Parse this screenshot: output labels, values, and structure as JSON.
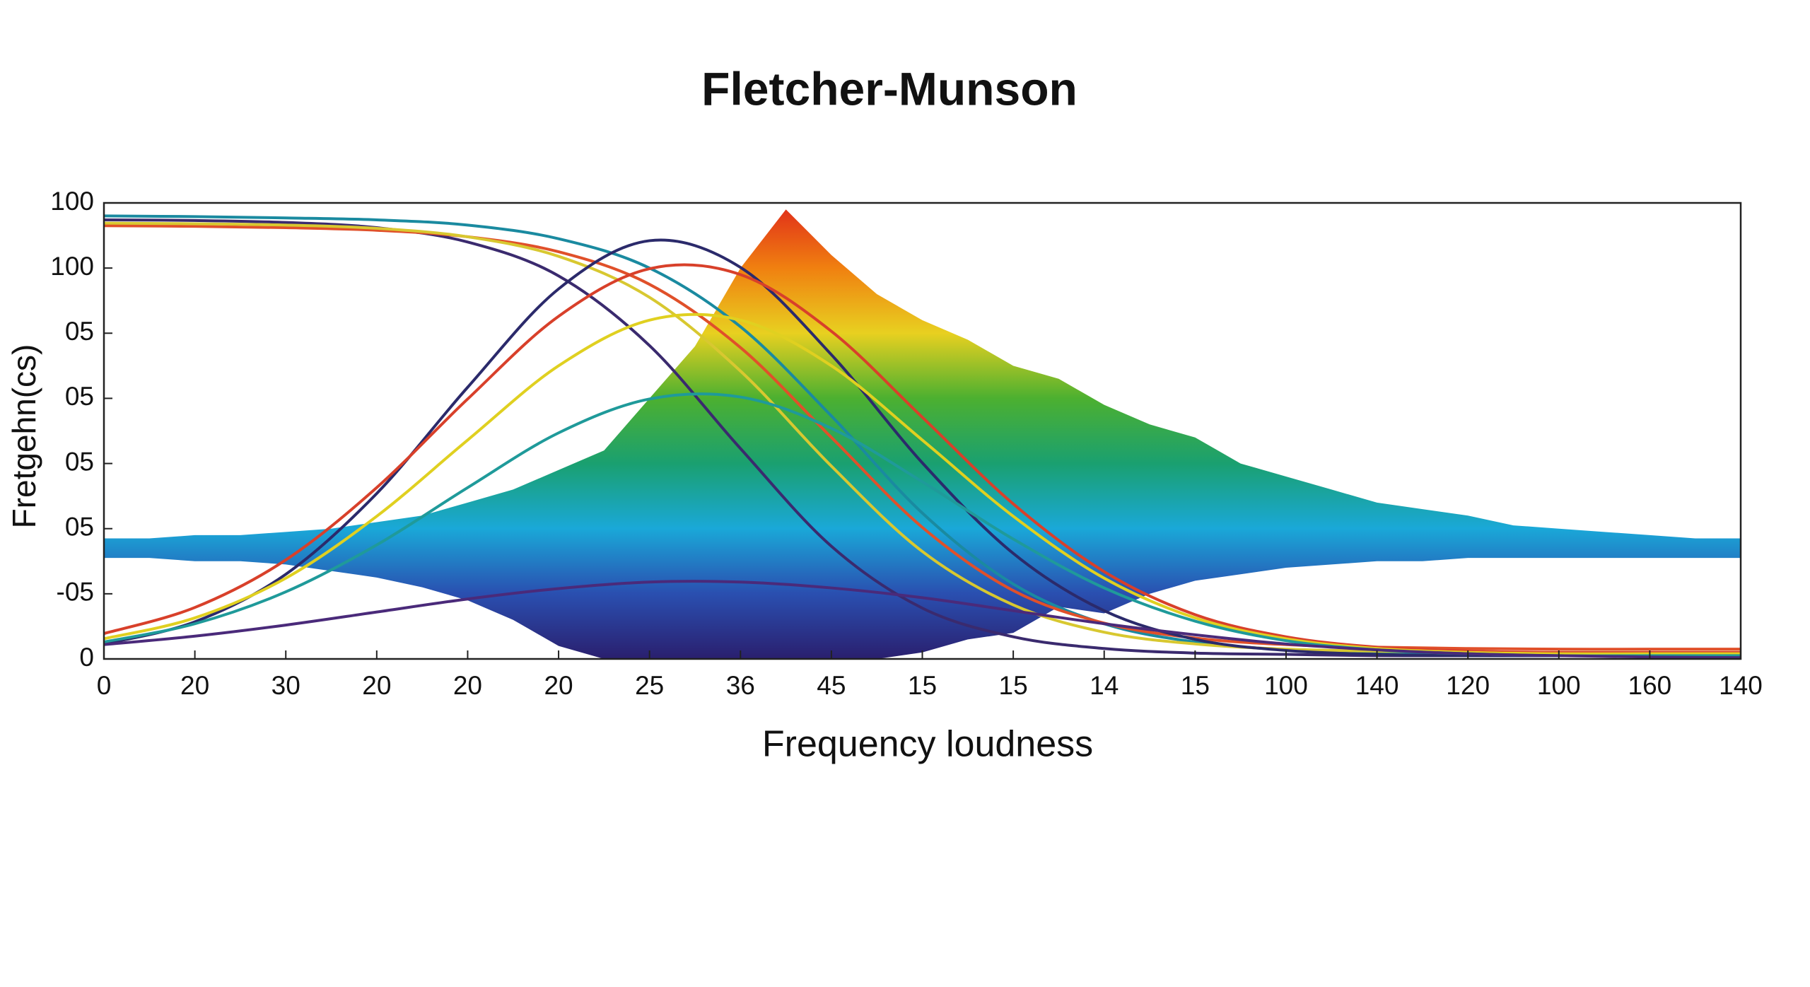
{
  "chart_data": {
    "type": "line",
    "title": "Fletcher-Munson",
    "xlabel": "Frequency loudness",
    "ylabel": "Fretgehn(cs)",
    "xlim": [
      0,
      18
    ],
    "ylim": [
      0,
      7
    ],
    "xticks": [
      0,
      {
        "value": 1,
        "label": "20"
      },
      {
        "value": 2,
        "label": "30"
      },
      {
        "value": 3,
        "label": "20"
      },
      {
        "value": 4,
        "label": "20"
      },
      {
        "value": 5,
        "label": "20"
      },
      {
        "value": 6,
        "label": "25"
      },
      {
        "value": 7,
        "label": "36"
      },
      {
        "value": 8,
        "label": "45"
      },
      {
        "value": 9,
        "label": "15"
      },
      {
        "value": 10,
        "label": "15"
      },
      {
        "value": 11,
        "label": "14"
      },
      {
        "value": 12,
        "label": "15"
      },
      {
        "value": 13,
        "label": "100"
      },
      {
        "value": 14,
        "label": "140"
      },
      {
        "value": 15,
        "label": "120"
      },
      {
        "value": 16,
        "label": "100"
      },
      {
        "value": 17,
        "label": "160"
      },
      {
        "value": 18,
        "label": "140"
      }
    ],
    "yticks": [
      0,
      {
        "value": 1,
        "label": "-05"
      },
      {
        "value": 2,
        "label": "05"
      },
      {
        "value": 3,
        "label": "05"
      },
      {
        "value": 4,
        "label": "05"
      },
      {
        "value": 5,
        "label": "05"
      },
      {
        "value": 6,
        "label": "100"
      },
      {
        "value": 7,
        "label": "100"
      }
    ],
    "band": {
      "x": [
        0,
        0.5,
        1,
        1.5,
        2,
        2.5,
        3,
        3.5,
        4,
        4.5,
        5,
        5.5,
        6,
        6.5,
        7,
        7.5,
        8,
        8.5,
        9,
        9.5,
        10,
        10.5,
        11,
        11.5,
        12,
        12.5,
        13,
        13.5,
        14,
        14.5,
        15,
        15.5,
        16,
        16.5,
        17,
        17.5,
        18
      ],
      "upper": [
        1.85,
        1.85,
        1.9,
        1.9,
        1.95,
        2.0,
        2.1,
        2.2,
        2.4,
        2.6,
        2.9,
        3.2,
        4.0,
        4.8,
        6.0,
        6.9,
        6.2,
        5.6,
        5.2,
        4.9,
        4.5,
        4.3,
        3.9,
        3.6,
        3.4,
        3.0,
        2.8,
        2.6,
        2.4,
        2.3,
        2.2,
        2.05,
        2.0,
        1.95,
        1.9,
        1.85,
        1.85
      ],
      "lower": [
        1.55,
        1.55,
        1.5,
        1.5,
        1.45,
        1.35,
        1.25,
        1.1,
        0.9,
        0.6,
        0.2,
        0,
        0,
        0,
        0,
        0,
        0,
        0,
        0.1,
        0.3,
        0.4,
        0.8,
        0.7,
        1.0,
        1.2,
        1.3,
        1.4,
        1.45,
        1.5,
        1.5,
        1.55,
        1.55,
        1.55,
        1.55,
        1.55,
        1.55,
        1.55
      ],
      "colors": [
        "#2a1f6e",
        "#2a4fb0",
        "#1aa8d8",
        "#1aa070",
        "#4cb030",
        "#e8d020",
        "#f08010",
        "#e02a1a"
      ]
    },
    "x": [
      0,
      1,
      2,
      3,
      4,
      5,
      6,
      7,
      8,
      9,
      10,
      11,
      12,
      13,
      14,
      15,
      16,
      17,
      18
    ],
    "series": [
      {
        "color": "#3a2a6e",
        "values": [
          6.74,
          6.73,
          6.7,
          6.62,
          6.4,
          5.88,
          4.81,
          3.23,
          1.73,
          0.78,
          0.34,
          0.16,
          0.09,
          0.07,
          0.05,
          0.05,
          0.05,
          0.05,
          0.05
        ]
      },
      {
        "color": "#1a8aa0",
        "values": [
          6.8,
          6.79,
          6.77,
          6.74,
          6.66,
          6.45,
          6.0,
          5.1,
          3.73,
          2.24,
          1.15,
          0.54,
          0.26,
          0.14,
          0.09,
          0.06,
          0.05,
          0.05,
          0.05
        ]
      },
      {
        "color": "#e0502a",
        "values": [
          6.65,
          6.64,
          6.62,
          6.58,
          6.48,
          6.25,
          5.75,
          4.78,
          3.4,
          2.02,
          1.05,
          0.55,
          0.32,
          0.22,
          0.18,
          0.16,
          0.15,
          0.15,
          0.15
        ]
      },
      {
        "color": "#d8c830",
        "values": [
          6.69,
          6.68,
          6.66,
          6.61,
          6.48,
          6.18,
          5.55,
          4.42,
          2.96,
          1.65,
          0.83,
          0.41,
          0.23,
          0.15,
          0.12,
          0.1,
          0.1,
          0.1,
          0.1
        ]
      },
      {
        "color": "#2b2a6b",
        "values": [
          0.23,
          0.57,
          1.3,
          2.54,
          4.17,
          5.68,
          6.42,
          6.01,
          4.67,
          3.01,
          1.62,
          0.74,
          0.3,
          0.13,
          0.07,
          0.05,
          0.05,
          0.05,
          0.05
        ]
      },
      {
        "color": "#d8402a",
        "values": [
          0.39,
          0.79,
          1.52,
          2.63,
          3.99,
          5.26,
          5.99,
          5.9,
          5.03,
          3.71,
          2.38,
          1.34,
          0.68,
          0.34,
          0.18,
          0.12,
          0.1,
          0.1,
          0.1
        ]
      },
      {
        "color": "#e0d020",
        "values": [
          0.31,
          0.63,
          1.24,
          2.19,
          3.36,
          4.5,
          5.2,
          5.2,
          4.5,
          3.36,
          2.19,
          1.24,
          0.63,
          0.31,
          0.16,
          0.1,
          0.08,
          0.08,
          0.08
        ]
      },
      {
        "color": "#1f9a9a",
        "values": [
          0.26,
          0.54,
          1.03,
          1.75,
          2.63,
          3.47,
          3.99,
          4.02,
          3.54,
          2.72,
          1.84,
          1.09,
          0.58,
          0.28,
          0.14,
          0.08,
          0.05,
          0.05,
          0.05
        ]
      },
      {
        "color": "#4a2a7a",
        "values": [
          0.22,
          0.35,
          0.52,
          0.72,
          0.92,
          1.08,
          1.18,
          1.18,
          1.09,
          0.94,
          0.74,
          0.54,
          0.37,
          0.23,
          0.14,
          0.08,
          0.05,
          0.03,
          0.02
        ]
      }
    ]
  }
}
